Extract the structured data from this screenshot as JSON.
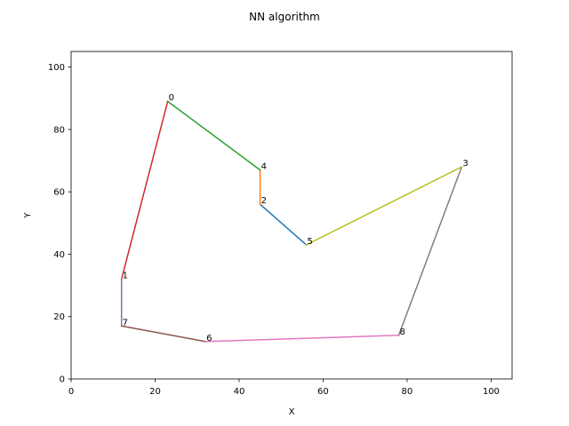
{
  "chart_data": {
    "type": "line",
    "title": "NN algorithm",
    "xlabel": "X",
    "ylabel": "Y",
    "xlim": [
      0,
      105
    ],
    "ylim": [
      0,
      105
    ],
    "xticks": [
      0,
      20,
      40,
      60,
      80,
      100
    ],
    "yticks": [
      0,
      20,
      40,
      60,
      80,
      100
    ],
    "grid": false,
    "points": [
      {
        "label": "0",
        "x": 23,
        "y": 89
      },
      {
        "label": "1",
        "x": 12,
        "y": 32
      },
      {
        "label": "2",
        "x": 45,
        "y": 56
      },
      {
        "label": "3",
        "x": 93,
        "y": 68
      },
      {
        "label": "4",
        "x": 45,
        "y": 67
      },
      {
        "label": "5",
        "x": 56,
        "y": 43
      },
      {
        "label": "6",
        "x": 32,
        "y": 12
      },
      {
        "label": "7",
        "x": 12,
        "y": 17
      },
      {
        "label": "8",
        "x": 78,
        "y": 14
      }
    ],
    "segments": [
      {
        "from": "2",
        "to": "5",
        "color": "#1f77b4"
      },
      {
        "from": "4",
        "to": "2",
        "color": "#ff7f0e"
      },
      {
        "from": "0",
        "to": "4",
        "color": "#2ca02c"
      },
      {
        "from": "1",
        "to": "0",
        "color": "#d62728"
      },
      {
        "from": "7",
        "to": "1",
        "color": "#9467bd"
      },
      {
        "from": "6",
        "to": "7",
        "color": "#8c564b"
      },
      {
        "from": "8",
        "to": "6",
        "color": "#e377c2"
      },
      {
        "from": "3",
        "to": "8",
        "color": "#7f7f7f"
      },
      {
        "from": "5",
        "to": "3",
        "color": "#bcbd22"
      }
    ]
  }
}
